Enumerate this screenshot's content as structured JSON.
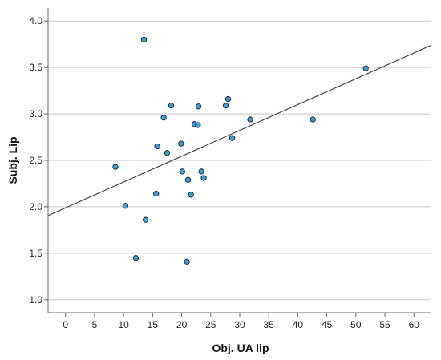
{
  "chart_data": {
    "type": "scatter",
    "title": "",
    "xlabel": "Obj. UA lip",
    "ylabel": "Subj. Lip",
    "xlim": [
      -3,
      63
    ],
    "ylim": [
      0.86,
      4.14
    ],
    "xticks": [
      0,
      5,
      10,
      15,
      20,
      25,
      30,
      35,
      40,
      45,
      50,
      55,
      60
    ],
    "yticks": [
      1.0,
      1.5,
      2.0,
      2.5,
      3.0,
      3.5,
      4.0
    ],
    "grid": "horizontal",
    "legend": "none",
    "colors": {
      "point_fill": "#3d9fd6",
      "point_stroke": "#1a1a1a",
      "fit_line": "#444444",
      "grid": "#c8c8c8",
      "axis": "#666666"
    },
    "points": [
      {
        "x": 13.5,
        "y": 3.8
      },
      {
        "x": 51.7,
        "y": 3.49
      },
      {
        "x": 28.0,
        "y": 3.16
      },
      {
        "x": 18.2,
        "y": 3.09
      },
      {
        "x": 22.9,
        "y": 3.08
      },
      {
        "x": 27.6,
        "y": 3.09
      },
      {
        "x": 16.9,
        "y": 2.96
      },
      {
        "x": 31.8,
        "y": 2.94
      },
      {
        "x": 42.6,
        "y": 2.94
      },
      {
        "x": 22.2,
        "y": 2.89
      },
      {
        "x": 22.8,
        "y": 2.88
      },
      {
        "x": 28.7,
        "y": 2.74
      },
      {
        "x": 19.9,
        "y": 2.68
      },
      {
        "x": 15.8,
        "y": 2.65
      },
      {
        "x": 17.5,
        "y": 2.58
      },
      {
        "x": 8.6,
        "y": 2.43
      },
      {
        "x": 20.1,
        "y": 2.38
      },
      {
        "x": 23.4,
        "y": 2.38
      },
      {
        "x": 23.8,
        "y": 2.31
      },
      {
        "x": 21.1,
        "y": 2.29
      },
      {
        "x": 15.6,
        "y": 2.14
      },
      {
        "x": 21.6,
        "y": 2.13
      },
      {
        "x": 10.3,
        "y": 2.01
      },
      {
        "x": 13.8,
        "y": 1.86
      },
      {
        "x": 12.1,
        "y": 1.45
      },
      {
        "x": 20.9,
        "y": 1.41
      }
    ],
    "fit_line": {
      "x": [
        -3,
        63
      ],
      "y": [
        1.905,
        3.74
      ]
    }
  }
}
